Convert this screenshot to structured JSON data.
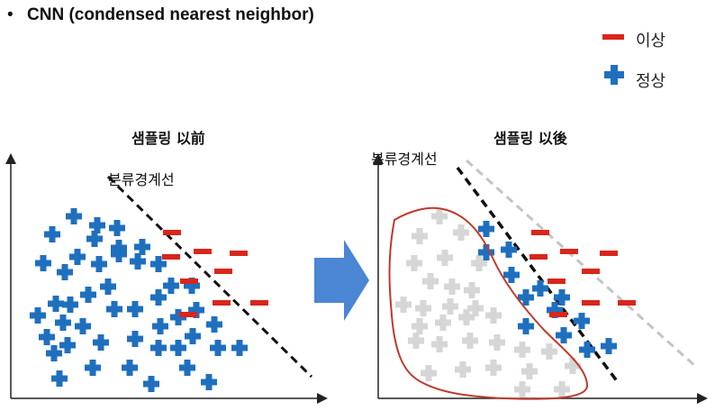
{
  "heading": {
    "bullet": "•",
    "text": "CNN (condensed nearest neighbor)"
  },
  "legend": {
    "anomaly_label": "이상",
    "normal_label": "정상"
  },
  "panels": {
    "before": {
      "title": "샘플링 以前",
      "boundary_label": "분류경계선"
    },
    "after": {
      "title": "샘플링 以後",
      "boundary_label": "분류경계선"
    }
  },
  "colors": {
    "normal": "#1f6fbf",
    "anomaly": "#d9261c",
    "removed": "#d6d6d6",
    "arrow": "#4a86d4",
    "selection": "#c0392b"
  }
}
